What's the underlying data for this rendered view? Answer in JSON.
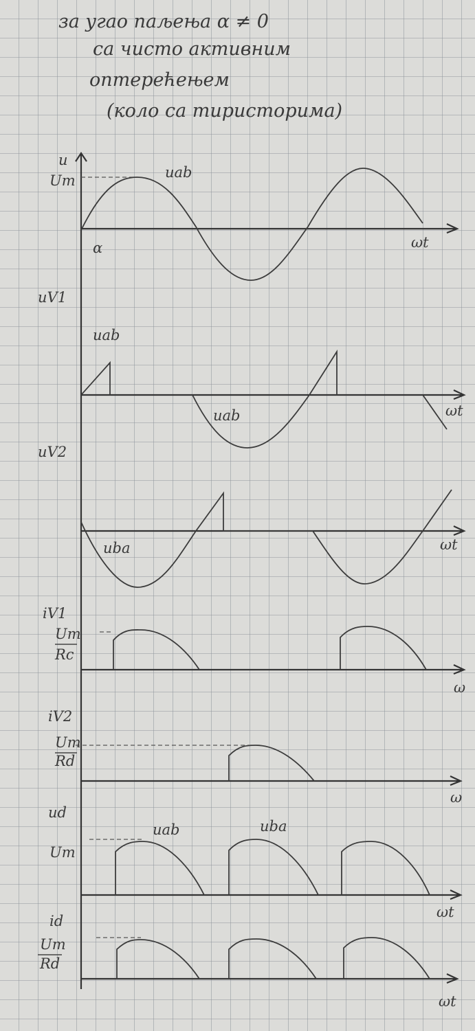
{
  "header": {
    "lines": [
      "за угао паљења α ≠ 0",
      "са чисто активним",
      "оптерећењем",
      "(коло са тиристорима)"
    ]
  },
  "panels": [
    {
      "axis": "u",
      "labels": [
        "Um",
        "uab",
        "α",
        "ωt"
      ]
    },
    {
      "axis": "uV1",
      "labels": [
        "uab",
        "uab",
        "ωt"
      ]
    },
    {
      "axis": "uV2",
      "labels": [
        "uba",
        "ωt"
      ]
    },
    {
      "axis": "iV1",
      "labels": [
        "Um",
        "Rc",
        "ω"
      ]
    },
    {
      "axis": "iV2",
      "labels": [
        "Um",
        "Rd",
        "ω"
      ]
    },
    {
      "axis": "ud",
      "labels": [
        "Um",
        "uab",
        "uba",
        "ωt"
      ]
    },
    {
      "axis": "id",
      "labels": [
        "Um",
        "Rd",
        "ωt"
      ]
    }
  ]
}
